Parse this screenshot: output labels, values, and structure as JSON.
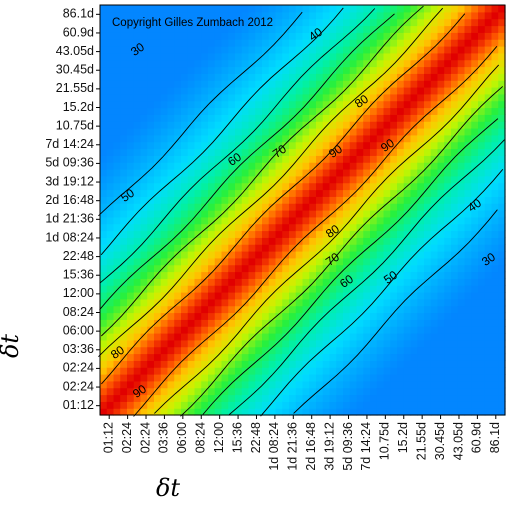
{
  "chart_data": {
    "type": "heatmap",
    "title": "",
    "annotation": "Copyright Gilles Zumbach 2012",
    "xlabel": "δt",
    "ylabel": "δt",
    "x_tick_labels": [
      "01:12",
      "02:24",
      "02:24",
      "03:36",
      "06:00",
      "08:24",
      "12:00",
      "15:36",
      "22:48",
      "1d 08:24",
      "1d 21:36",
      "2d 16:48",
      "3d 19:12",
      "5d 09:36",
      "7d 14:24",
      "10.75d",
      "15.2d",
      "21.55d",
      "30.45d",
      "43.05d",
      "60.9d",
      "86.1d"
    ],
    "y_tick_labels": [
      "01:12",
      "02:24",
      "02:24",
      "03:36",
      "06:00",
      "08:24",
      "12:00",
      "15:36",
      "22:48",
      "1d 08:24",
      "1d 21:36",
      "2d 16:48",
      "3d 19:12",
      "5d 09:36",
      "7d 14:24",
      "10.75d",
      "15.2d",
      "21.55d",
      "30.45d",
      "43.05d",
      "60.9d",
      "86.1d"
    ],
    "value_range": [
      0,
      100
    ],
    "colormap": "rainbow: blue (low) → cyan → green → yellow → red (high)",
    "colors": {
      "low": "#1040ff",
      "mid_low": "#00d8ff",
      "mid": "#20f060",
      "mid_high": "#ffe000",
      "high": "#e00000"
    },
    "contour_levels": [
      30,
      40,
      50,
      60,
      70,
      80,
      90
    ],
    "contour_labels": [
      {
        "value": "30"
      },
      {
        "value": "40"
      },
      {
        "value": "50"
      },
      {
        "value": "60"
      },
      {
        "value": "70"
      },
      {
        "value": "80"
      },
      {
        "value": "90"
      },
      {
        "value": "90"
      },
      {
        "value": "80"
      },
      {
        "value": "70"
      },
      {
        "value": "60"
      },
      {
        "value": "50"
      },
      {
        "value": "40"
      },
      {
        "value": "30"
      },
      {
        "value": "80"
      },
      {
        "value": "90"
      }
    ],
    "grid": false,
    "note": "Correlation-like surface, symmetric about the diagonal, peak values near 100 on the diagonal decreasing away from it"
  }
}
